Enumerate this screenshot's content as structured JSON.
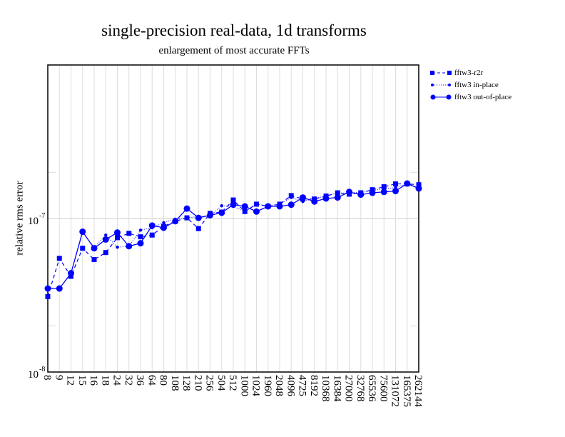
{
  "chart_data": {
    "type": "line",
    "title": "single-precision real-data, 1d transforms",
    "subtitle": "enlargement of most accurate FFTs",
    "xlabel": "",
    "ylabel": "relative rms error",
    "yscale": "log",
    "ylim": [
      1e-08,
      1e-06
    ],
    "ytick_labels": [
      {
        "base": "10",
        "exp": "-8",
        "value": 1e-08
      },
      {
        "base": "10",
        "exp": "-7",
        "value": 1e-07
      }
    ],
    "grid": true,
    "legend_position": "outside-top-right",
    "categories": [
      "8",
      "9",
      "12",
      "15",
      "16",
      "18",
      "24",
      "32",
      "36",
      "64",
      "80",
      "108",
      "128",
      "210",
      "256",
      "504",
      "512",
      "1000",
      "1024",
      "1960",
      "2048",
      "4096",
      "4725",
      "8192",
      "10368",
      "16384",
      "27000",
      "32768",
      "65536",
      "75600",
      "131072",
      "165375",
      "262144"
    ],
    "series": [
      {
        "name": "fftw3-r2r",
        "style": "dashed-square",
        "color": "#0000ff",
        "values": [
          3.1e-08,
          5.5e-08,
          4.2e-08,
          6.4e-08,
          5.4e-08,
          6e-08,
          7.5e-08,
          8e-08,
          7.6e-08,
          7.8e-08,
          8.9e-08,
          9.6e-08,
          1.01e-07,
          8.6e-08,
          1.08e-07,
          1.1e-07,
          1.32e-07,
          1.11e-07,
          1.24e-07,
          1.2e-07,
          1.24e-07,
          1.41e-07,
          1.34e-07,
          1.34e-07,
          1.4e-07,
          1.47e-07,
          1.44e-07,
          1.47e-07,
          1.54e-07,
          1.61e-07,
          1.68e-07,
          1.68e-07,
          1.66e-07
        ]
      },
      {
        "name": "fftw3 in-place",
        "style": "dotted-smalldot",
        "color": "#0000ff",
        "values": [
          3.5e-08,
          3.5e-08,
          4.4e-08,
          8.1e-08,
          6.5e-08,
          7.8e-08,
          6.5e-08,
          6.6e-08,
          8.4e-08,
          8.7e-08,
          9.4e-08,
          9.9e-08,
          1.01e-07,
          1.03e-07,
          1.04e-07,
          1.21e-07,
          1.2e-07,
          1.11e-07,
          1.24e-07,
          1.21e-07,
          1.24e-07,
          1.37e-07,
          1.29e-07,
          1.35e-07,
          1.4e-07,
          1.47e-07,
          1.46e-07,
          1.49e-07,
          1.52e-07,
          1.56e-07,
          1.59e-07,
          1.68e-07,
          1.59e-07
        ]
      },
      {
        "name": "fftw3 out-of-place",
        "style": "solid-circle",
        "color": "#0000ff",
        "values": [
          3.5e-08,
          3.5e-08,
          4.4e-08,
          8.2e-08,
          6.4e-08,
          7.3e-08,
          8.1e-08,
          6.6e-08,
          6.9e-08,
          9e-08,
          8.7e-08,
          9.6e-08,
          1.16e-07,
          1.01e-07,
          1.05e-07,
          1.09e-07,
          1.23e-07,
          1.2e-07,
          1.11e-07,
          1.2e-07,
          1.2e-07,
          1.23e-07,
          1.37e-07,
          1.29e-07,
          1.35e-07,
          1.37e-07,
          1.49e-07,
          1.43e-07,
          1.47e-07,
          1.49e-07,
          1.51e-07,
          1.69e-07,
          1.57e-07
        ]
      }
    ]
  }
}
